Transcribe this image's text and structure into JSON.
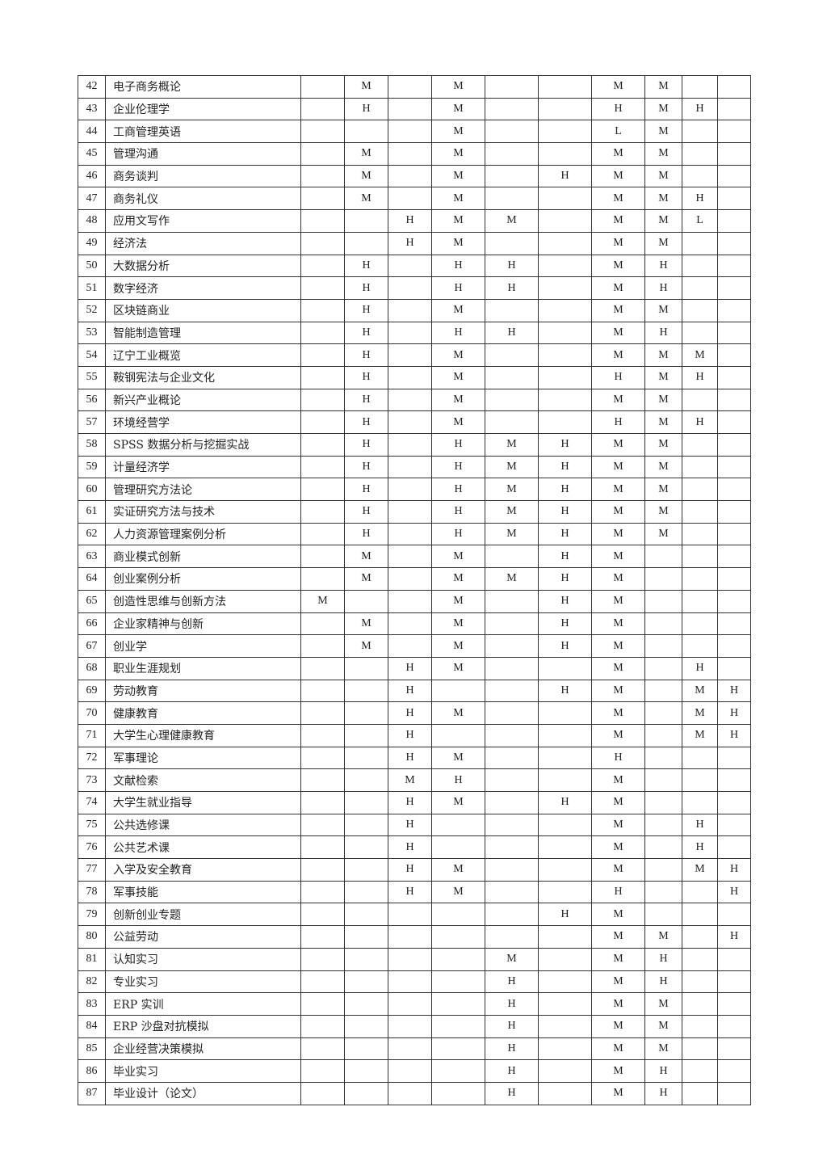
{
  "table": {
    "rows": [
      [
        "42",
        "电子商务概论",
        "",
        "M",
        "",
        "M",
        "",
        "",
        "M",
        "M",
        "",
        ""
      ],
      [
        "43",
        "企业伦理学",
        "",
        "H",
        "",
        "M",
        "",
        "",
        "H",
        "M",
        "H",
        ""
      ],
      [
        "44",
        "工商管理英语",
        "",
        "",
        "",
        "M",
        "",
        "",
        "L",
        "M",
        "",
        ""
      ],
      [
        "45",
        "管理沟通",
        "",
        "M",
        "",
        "M",
        "",
        "",
        "M",
        "M",
        "",
        ""
      ],
      [
        "46",
        "商务谈判",
        "",
        "M",
        "",
        "M",
        "",
        "H",
        "M",
        "M",
        "",
        ""
      ],
      [
        "47",
        "商务礼仪",
        "",
        "M",
        "",
        "M",
        "",
        "",
        "M",
        "M",
        "H",
        ""
      ],
      [
        "48",
        "应用文写作",
        "",
        "",
        "H",
        "M",
        "M",
        "",
        "M",
        "M",
        "L",
        ""
      ],
      [
        "49",
        "经济法",
        "",
        "",
        "H",
        "M",
        "",
        "",
        "M",
        "M",
        "",
        ""
      ],
      [
        "50",
        "大数据分析",
        "",
        "H",
        "",
        "H",
        "H",
        "",
        "M",
        "H",
        "",
        ""
      ],
      [
        "51",
        "数字经济",
        "",
        "H",
        "",
        "H",
        "H",
        "",
        "M",
        "H",
        "",
        ""
      ],
      [
        "52",
        "区块链商业",
        "",
        "H",
        "",
        "M",
        "",
        "",
        "M",
        "M",
        "",
        ""
      ],
      [
        "53",
        "智能制造管理",
        "",
        "H",
        "",
        "H",
        "H",
        "",
        "M",
        "H",
        "",
        ""
      ],
      [
        "54",
        "辽宁工业概览",
        "",
        "H",
        "",
        "M",
        "",
        "",
        "M",
        "M",
        "M",
        ""
      ],
      [
        "55",
        "鞍钢宪法与企业文化",
        "",
        "H",
        "",
        "M",
        "",
        "",
        "H",
        "M",
        "H",
        ""
      ],
      [
        "56",
        "新兴产业概论",
        "",
        "H",
        "",
        "M",
        "",
        "",
        "M",
        "M",
        "",
        ""
      ],
      [
        "57",
        "环境经营学",
        "",
        "H",
        "",
        "M",
        "",
        "",
        "H",
        "M",
        "H",
        ""
      ],
      [
        "58",
        "SPSS 数据分析与挖掘实战",
        "",
        "H",
        "",
        "H",
        "M",
        "H",
        "M",
        "M",
        "",
        ""
      ],
      [
        "59",
        "计量经济学",
        "",
        "H",
        "",
        "H",
        "M",
        "H",
        "M",
        "M",
        "",
        ""
      ],
      [
        "60",
        "管理研究方法论",
        "",
        "H",
        "",
        "H",
        "M",
        "H",
        "M",
        "M",
        "",
        ""
      ],
      [
        "61",
        "实证研究方法与技术",
        "",
        "H",
        "",
        "H",
        "M",
        "H",
        "M",
        "M",
        "",
        ""
      ],
      [
        "62",
        "人力资源管理案例分析",
        "",
        "H",
        "",
        "H",
        "M",
        "H",
        "M",
        "M",
        "",
        ""
      ],
      [
        "63",
        "商业模式创新",
        "",
        "M",
        "",
        "M",
        "",
        "H",
        "M",
        "",
        "",
        ""
      ],
      [
        "64",
        "创业案例分析",
        "",
        "M",
        "",
        "M",
        "M",
        "H",
        "M",
        "",
        "",
        ""
      ],
      [
        "65",
        "创造性思维与创新方法",
        "M",
        "",
        "",
        "M",
        "",
        "H",
        "M",
        "",
        "",
        ""
      ],
      [
        "66",
        "企业家精神与创新",
        "",
        "M",
        "",
        "M",
        "",
        "H",
        "M",
        "",
        "",
        ""
      ],
      [
        "67",
        "创业学",
        "",
        "M",
        "",
        "M",
        "",
        "H",
        "M",
        "",
        "",
        ""
      ],
      [
        "68",
        "职业生涯规划",
        "",
        "",
        "H",
        "M",
        "",
        "",
        "M",
        "",
        "H",
        ""
      ],
      [
        "69",
        "劳动教育",
        "",
        "",
        "H",
        "",
        "",
        "H",
        "M",
        "",
        "M",
        "H"
      ],
      [
        "70",
        "健康教育",
        "",
        "",
        "H",
        "M",
        "",
        "",
        "M",
        "",
        "M",
        "H"
      ],
      [
        "71",
        "大学生心理健康教育",
        "",
        "",
        "H",
        "",
        "",
        "",
        "M",
        "",
        "M",
        "H"
      ],
      [
        "72",
        "军事理论",
        "",
        "",
        "H",
        "M",
        "",
        "",
        "H",
        "",
        "",
        ""
      ],
      [
        "73",
        "文献检索",
        "",
        "",
        "M",
        "H",
        "",
        "",
        "M",
        "",
        "",
        ""
      ],
      [
        "74",
        "大学生就业指导",
        "",
        "",
        "H",
        "M",
        "",
        "H",
        "M",
        "",
        "",
        ""
      ],
      [
        "75",
        "公共选修课",
        "",
        "",
        "H",
        "",
        "",
        "",
        "M",
        "",
        "H",
        ""
      ],
      [
        "76",
        "公共艺术课",
        "",
        "",
        "H",
        "",
        "",
        "",
        "M",
        "",
        "H",
        ""
      ],
      [
        "77",
        "入学及安全教育",
        "",
        "",
        "H",
        "M",
        "",
        "",
        "M",
        "",
        "M",
        "H"
      ],
      [
        "78",
        "军事技能",
        "",
        "",
        "H",
        "M",
        "",
        "",
        "H",
        "",
        "",
        "H"
      ],
      [
        "79",
        "创新创业专题",
        "",
        "",
        "",
        "",
        "",
        "H",
        "M",
        "",
        "",
        ""
      ],
      [
        "80",
        "公益劳动",
        "",
        "",
        "",
        "",
        "",
        "",
        "M",
        "M",
        "",
        "H"
      ],
      [
        "81",
        "认知实习",
        "",
        "",
        "",
        "",
        "M",
        "",
        "M",
        "H",
        "",
        ""
      ],
      [
        "82",
        "专业实习",
        "",
        "",
        "",
        "",
        "H",
        "",
        "M",
        "H",
        "",
        ""
      ],
      [
        "83",
        "ERP 实训",
        "",
        "",
        "",
        "",
        "H",
        "",
        "M",
        "M",
        "",
        ""
      ],
      [
        "84",
        "ERP 沙盘对抗模拟",
        "",
        "",
        "",
        "",
        "H",
        "",
        "M",
        "M",
        "",
        ""
      ],
      [
        "85",
        "企业经营决策模拟",
        "",
        "",
        "",
        "",
        "H",
        "",
        "M",
        "M",
        "",
        ""
      ],
      [
        "86",
        "毕业实习",
        "",
        "",
        "",
        "",
        "H",
        "",
        "M",
        "H",
        "",
        ""
      ],
      [
        "87",
        "毕业设计（论文）",
        "",
        "",
        "",
        "",
        "H",
        "",
        "M",
        "H",
        "",
        ""
      ]
    ]
  }
}
